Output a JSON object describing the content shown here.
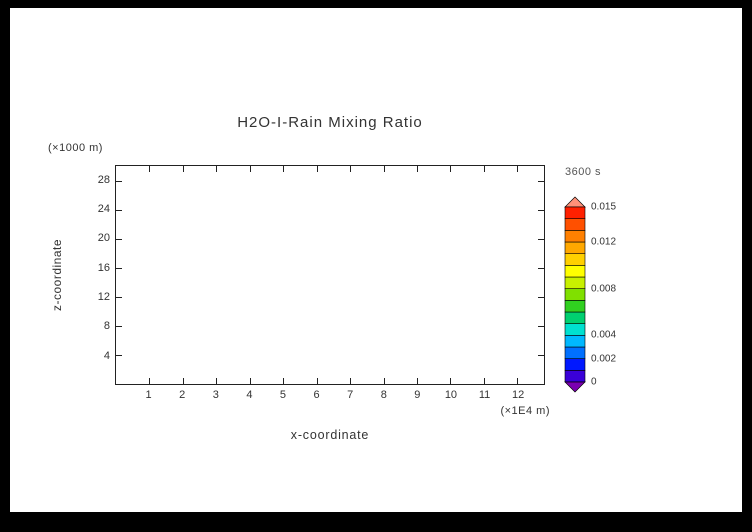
{
  "window": {
    "background": "#000000",
    "panel_background": "#ffffff",
    "text_color": "#333333"
  },
  "chart_data": {
    "type": "contour",
    "title": "H2O-I-Rain Mixing Ratio",
    "xlabel": "x-coordinate",
    "ylabel": "z-coordinate",
    "x_units": "(×1E4 m)",
    "y_units": "(×1000 m)",
    "time_label": "3600 s",
    "xlim": [
      0,
      12.8
    ],
    "ylim": [
      0,
      30
    ],
    "x_ticks": [
      1,
      2,
      3,
      4,
      5,
      6,
      7,
      8,
      9,
      10,
      11,
      12
    ],
    "y_ticks": [
      4,
      8,
      12,
      16,
      20,
      24,
      28
    ],
    "grid": false,
    "series": [],
    "colorbar": {
      "min": 0,
      "max": 0.015,
      "tick_values": [
        0,
        0.002,
        0.004,
        0.008,
        0.012,
        0.015
      ],
      "tick_labels": [
        "0",
        "0.002",
        "0.004",
        "0.008",
        "0.012",
        "0.015"
      ],
      "segment_colors": [
        "#3a00d8",
        "#0018ff",
        "#0070ff",
        "#00b8ff",
        "#00e0d0",
        "#00d070",
        "#30d020",
        "#80e000",
        "#c8f000",
        "#ffff00",
        "#ffd000",
        "#ffa800",
        "#ff8000",
        "#ff5000",
        "#ff2000"
      ],
      "below_color": "#7a00b0",
      "above_color": "#ff9078"
    }
  }
}
